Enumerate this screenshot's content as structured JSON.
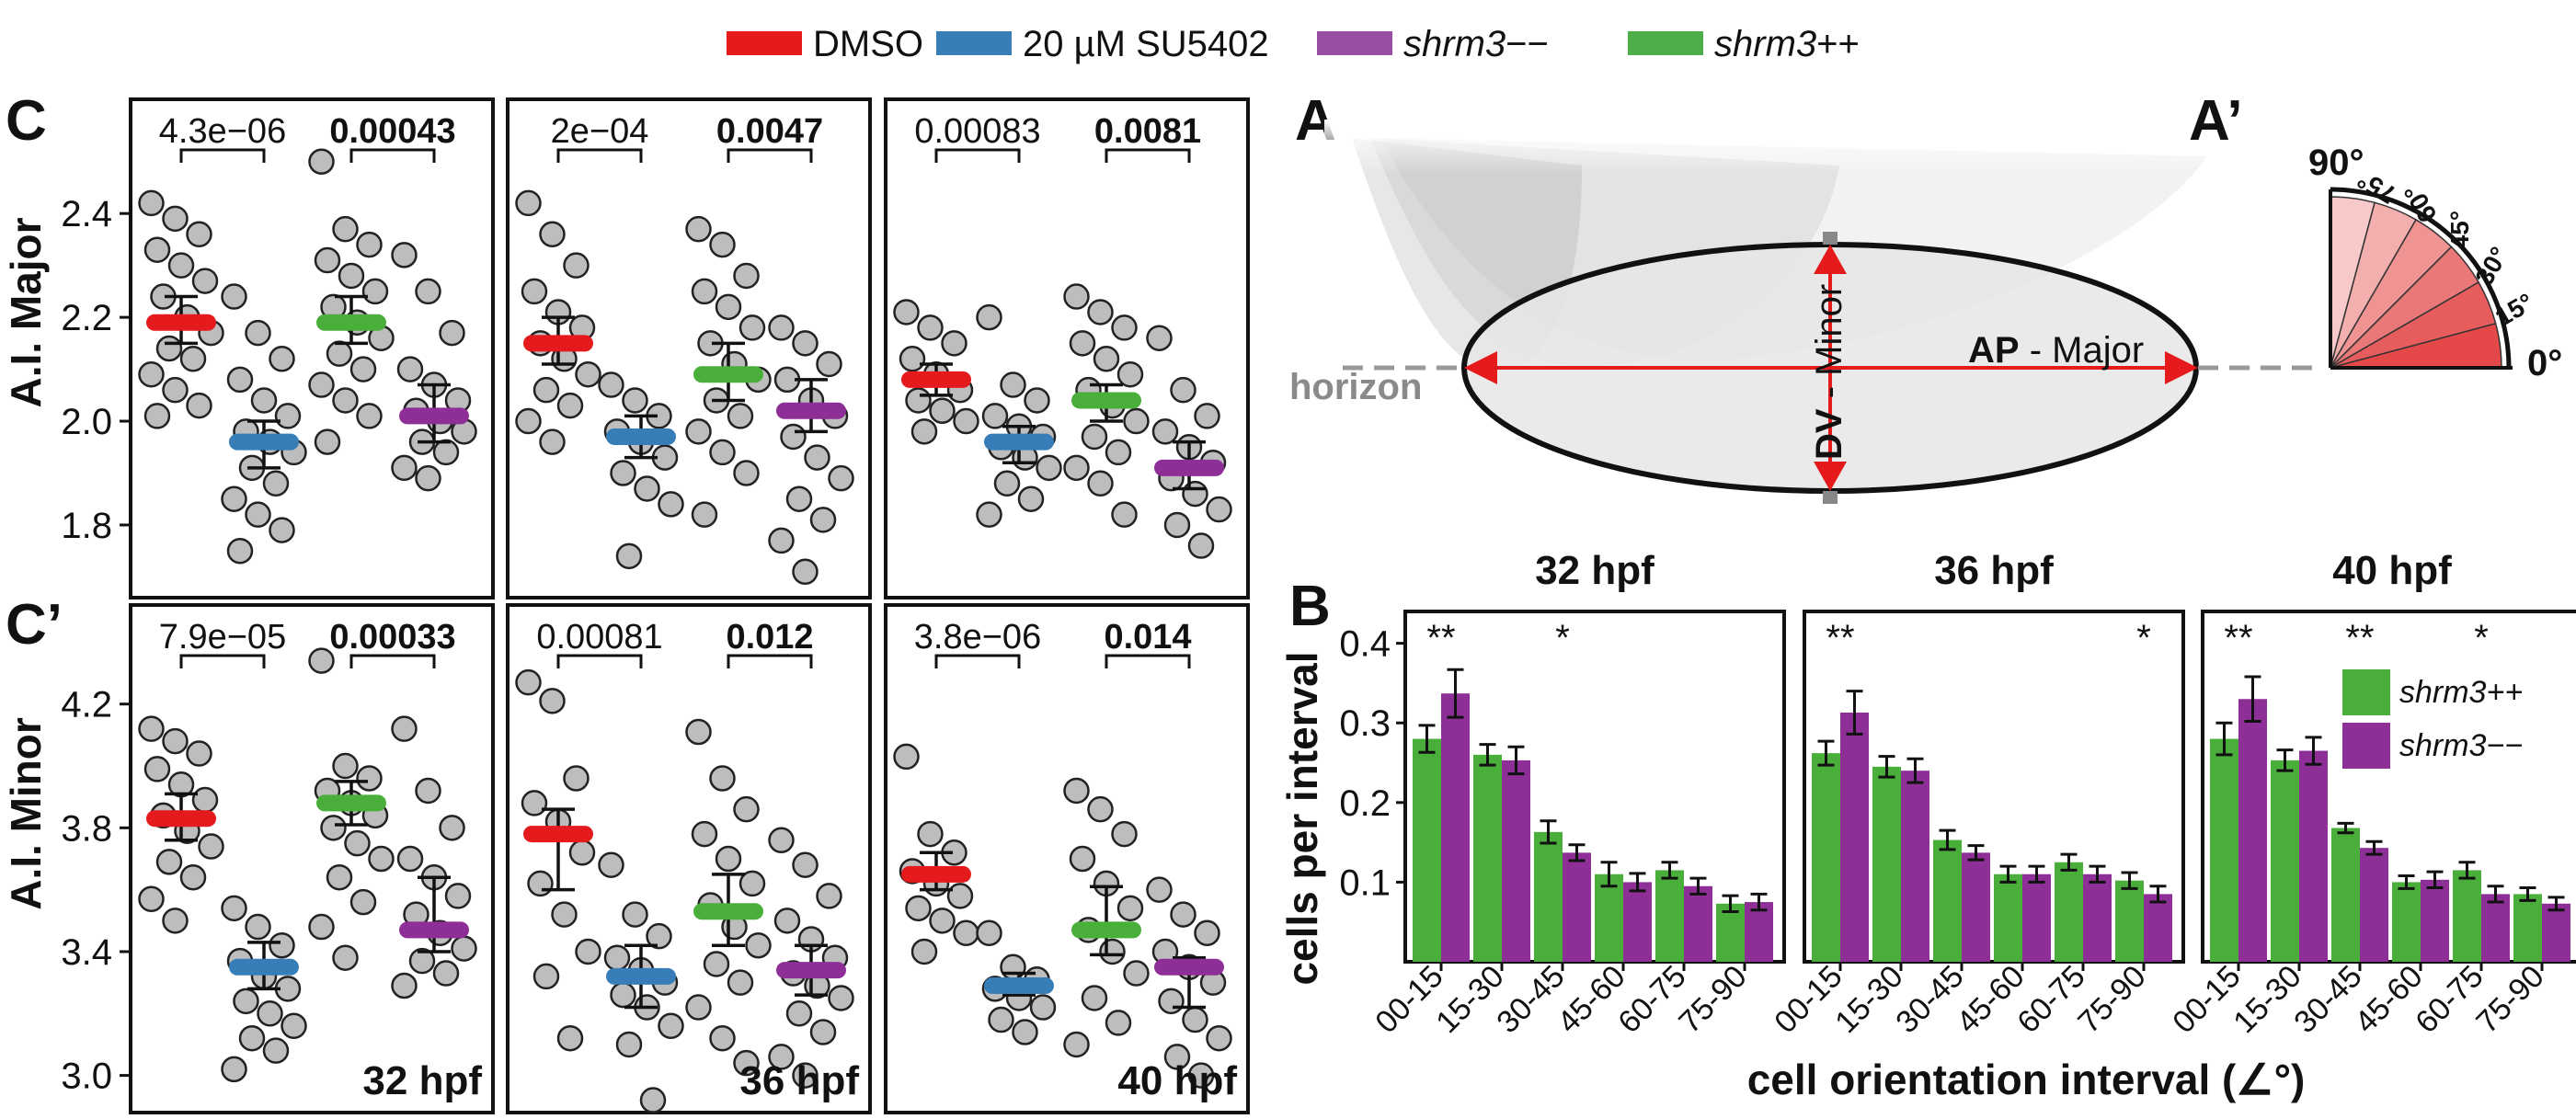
{
  "chart_data": [
    {
      "type": "scatter",
      "panel_label": "C",
      "ylabel": "A.I. Major",
      "yticks": [
        "1.8",
        "2.0",
        "2.2",
        "2.4"
      ],
      "ylim": [
        1.66,
        2.62
      ],
      "groups": [
        "DMSO",
        "20 µM SU5402",
        "shrm3−−",
        "shrm3++"
      ],
      "group_order": [
        "DMSO",
        "20 µM SU5402",
        "shrm3++",
        "shrm3−−"
      ],
      "panels": [
        {
          "stage": "32 hpf",
          "means": [
            2.19,
            1.96,
            2.19,
            2.01
          ],
          "ci_low": [
            2.15,
            1.91,
            2.15,
            1.96
          ],
          "ci_high": [
            2.24,
            2.0,
            2.24,
            2.07
          ],
          "p_left": "4.3e−06",
          "p_right": "0.00043",
          "points": [
            [
              2.42,
              2.39,
              2.36,
              2.33,
              2.3,
              2.27,
              2.24,
              2.2,
              2.17,
              2.14,
              2.12,
              2.09,
              2.06,
              2.03,
              2.01
            ],
            [
              2.24,
              2.17,
              2.12,
              2.08,
              2.04,
              2.01,
              1.98,
              1.96,
              1.94,
              1.91,
              1.88,
              1.85,
              1.82,
              1.79,
              1.75
            ],
            [
              2.5,
              2.37,
              2.34,
              2.31,
              2.28,
              2.25,
              2.22,
              2.19,
              2.16,
              2.13,
              2.1,
              2.07,
              2.04,
              2.01,
              1.96
            ],
            [
              2.32,
              2.25,
              2.17,
              2.1,
              2.07,
              2.04,
              2.02,
              2.0,
              1.98,
              1.96,
              1.94,
              1.91,
              1.89
            ]
          ]
        },
        {
          "stage": "36 hpf",
          "means": [
            2.15,
            1.97,
            2.09,
            2.02
          ],
          "ci_low": [
            2.11,
            1.93,
            2.04,
            1.98
          ],
          "ci_high": [
            2.2,
            2.01,
            2.15,
            2.08
          ],
          "p_left": "2e−04",
          "p_right": "0.0047",
          "points": [
            [
              2.42,
              2.36,
              2.3,
              2.25,
              2.21,
              2.18,
              2.15,
              2.12,
              2.09,
              2.06,
              2.03,
              2.0,
              1.96
            ],
            [
              2.07,
              2.04,
              2.01,
              1.98,
              1.96,
              1.93,
              1.9,
              1.87,
              1.84,
              1.74
            ],
            [
              2.37,
              2.34,
              2.28,
              2.25,
              2.22,
              2.18,
              2.15,
              2.11,
              2.08,
              2.04,
              2.01,
              1.98,
              1.94,
              1.9,
              1.82
            ],
            [
              2.18,
              2.15,
              2.11,
              2.08,
              2.04,
              2.01,
              1.97,
              1.93,
              1.89,
              1.85,
              1.81,
              1.77,
              1.71
            ]
          ]
        },
        {
          "stage": "40 hpf",
          "means": [
            2.08,
            1.96,
            2.04,
            1.91
          ],
          "ci_low": [
            2.05,
            1.92,
            2.0,
            1.87
          ],
          "ci_high": [
            2.11,
            1.99,
            2.07,
            1.96
          ],
          "p_left": "0.00083",
          "p_right": "0.0081",
          "points": [
            [
              2.21,
              2.18,
              2.15,
              2.12,
              2.09,
              2.06,
              2.04,
              2.02,
              2.0,
              1.98
            ],
            [
              2.2,
              2.07,
              2.04,
              2.01,
              1.99,
              1.97,
              1.95,
              1.93,
              1.91,
              1.88,
              1.85,
              1.82
            ],
            [
              2.24,
              2.21,
              2.18,
              2.15,
              2.12,
              2.09,
              2.06,
              2.03,
              2.0,
              1.97,
              1.94,
              1.91,
              1.88,
              1.82
            ],
            [
              2.16,
              2.06,
              2.01,
              1.98,
              1.95,
              1.92,
              1.89,
              1.86,
              1.83,
              1.8,
              1.76
            ]
          ]
        }
      ]
    },
    {
      "type": "scatter",
      "panel_label": "C’",
      "ylabel": "A.I. Minor",
      "yticks": [
        "3.0",
        "3.4",
        "3.8",
        "4.2"
      ],
      "ylim": [
        2.88,
        4.52
      ],
      "panels": [
        {
          "stage": "32 hpf",
          "means": [
            3.83,
            3.35,
            3.88,
            3.47
          ],
          "ci_low": [
            3.76,
            3.28,
            3.81,
            3.4
          ],
          "ci_high": [
            3.91,
            3.43,
            3.95,
            3.64
          ],
          "p_left": "7.9e−05",
          "p_right": "0.00033",
          "points": [
            [
              4.12,
              4.08,
              4.04,
              3.99,
              3.94,
              3.89,
              3.84,
              3.79,
              3.74,
              3.69,
              3.64,
              3.57,
              3.5
            ],
            [
              3.54,
              3.48,
              3.42,
              3.37,
              3.32,
              3.28,
              3.24,
              3.2,
              3.16,
              3.12,
              3.08,
              3.02
            ],
            [
              4.34,
              4.0,
              3.96,
              3.92,
              3.88,
              3.84,
              3.8,
              3.75,
              3.7,
              3.64,
              3.56,
              3.48,
              3.38
            ],
            [
              4.12,
              3.92,
              3.8,
              3.7,
              3.64,
              3.58,
              3.52,
              3.46,
              3.41,
              3.37,
              3.33,
              3.29
            ]
          ]
        },
        {
          "stage": "36 hpf",
          "means": [
            3.78,
            3.32,
            3.53,
            3.34
          ],
          "ci_low": [
            3.6,
            3.22,
            3.42,
            3.26
          ],
          "ci_high": [
            3.86,
            3.42,
            3.65,
            3.42
          ],
          "p_left": "0.00081",
          "p_right": "0.012",
          "points": [
            [
              4.27,
              4.21,
              3.96,
              3.88,
              3.82,
              3.72,
              3.62,
              3.52,
              3.4,
              3.32,
              3.12
            ],
            [
              3.68,
              3.52,
              3.45,
              3.38,
              3.34,
              3.3,
              3.26,
              3.22,
              3.16,
              3.1,
              2.92
            ],
            [
              4.11,
              3.96,
              3.86,
              3.78,
              3.7,
              3.62,
              3.55,
              3.48,
              3.42,
              3.36,
              3.3,
              3.22,
              3.12,
              3.04
            ],
            [
              3.76,
              3.68,
              3.58,
              3.5,
              3.44,
              3.38,
              3.33,
              3.29,
              3.25,
              3.2,
              3.14,
              3.06,
              3.0
            ]
          ]
        },
        {
          "stage": "40 hpf",
          "means": [
            3.65,
            3.29,
            3.47,
            3.35
          ],
          "ci_low": [
            3.6,
            3.26,
            3.39,
            3.22
          ],
          "ci_high": [
            3.72,
            3.33,
            3.61,
            3.38
          ],
          "p_left": "3.8e−06",
          "p_right": "0.014",
          "points": [
            [
              4.03,
              3.78,
              3.72,
              3.66,
              3.62,
              3.58,
              3.54,
              3.5,
              3.46,
              3.4
            ],
            [
              3.46,
              3.35,
              3.31,
              3.28,
              3.25,
              3.22,
              3.18,
              3.14
            ],
            [
              3.92,
              3.86,
              3.78,
              3.7,
              3.62,
              3.54,
              3.47,
              3.4,
              3.33,
              3.25,
              3.17,
              3.1
            ],
            [
              3.6,
              3.52,
              3.46,
              3.4,
              3.35,
              3.3,
              3.24,
              3.18,
              3.12,
              3.06,
              3.0
            ]
          ]
        }
      ]
    },
    {
      "type": "bar",
      "panel_label": "B",
      "ylabel": "cells per interval",
      "xlabel": "cell orientation interval (∠°)",
      "categories": [
        "00-15",
        "15-30",
        "30-45",
        "45-60",
        "60-75",
        "75-90"
      ],
      "yticks": [
        "0.1",
        "0.2",
        "0.3",
        "0.4"
      ],
      "ylim": [
        0.0,
        0.44
      ],
      "legend": [
        "shrm3++",
        "shrm3−−"
      ],
      "legend_position": "top-right",
      "panels": [
        {
          "stage": "32 hpf",
          "series": [
            {
              "name": "shrm3++",
              "values": [
                0.28,
                0.26,
                0.163,
                0.11,
                0.115,
                0.073
              ],
              "err": [
                0.017,
                0.013,
                0.014,
                0.015,
                0.01,
                0.01
              ]
            },
            {
              "name": "shrm3−−",
              "values": [
                0.337,
                0.253,
                0.137,
                0.1,
                0.095,
                0.075
              ],
              "err": [
                0.03,
                0.017,
                0.01,
                0.011,
                0.01,
                0.01
              ]
            }
          ],
          "stars": [
            "**",
            "",
            "*",
            "",
            "",
            ""
          ]
        },
        {
          "stage": "36 hpf",
          "series": [
            {
              "name": "shrm3++",
              "values": [
                0.262,
                0.245,
                0.153,
                0.11,
                0.125,
                0.102
              ],
              "err": [
                0.015,
                0.013,
                0.012,
                0.01,
                0.01,
                0.01
              ]
            },
            {
              "name": "shrm3−−",
              "values": [
                0.313,
                0.24,
                0.137,
                0.11,
                0.11,
                0.085
              ],
              "err": [
                0.027,
                0.015,
                0.009,
                0.01,
                0.01,
                0.01
              ]
            }
          ],
          "stars": [
            "**",
            "",
            "",
            "",
            "",
            "*"
          ]
        },
        {
          "stage": "40 hpf",
          "series": [
            {
              "name": "shrm3++",
              "values": [
                0.28,
                0.253,
                0.168,
                0.1,
                0.115,
                0.085
              ],
              "err": [
                0.02,
                0.013,
                0.006,
                0.008,
                0.01,
                0.008
              ]
            },
            {
              "name": "shrm3−−",
              "values": [
                0.33,
                0.265,
                0.143,
                0.103,
                0.085,
                0.073
              ],
              "err": [
                0.028,
                0.017,
                0.008,
                0.01,
                0.01,
                0.008
              ]
            }
          ],
          "stars": [
            "**",
            "",
            "**",
            "",
            "*",
            ""
          ]
        }
      ]
    }
  ],
  "legend": {
    "items": [
      {
        "label": "DMSO",
        "color": "#e41a1c",
        "italic": false,
        "suffix": ""
      },
      {
        "label": "20 µM SU5402",
        "color": "#377eb8",
        "italic": false,
        "suffix": ""
      },
      {
        "label": "shrm3",
        "color": "#984ea3",
        "italic": true,
        "suffix": "−−"
      },
      {
        "label": "shrm3",
        "color": "#4daf4a",
        "italic": true,
        "suffix": "++"
      }
    ]
  },
  "colors": {
    "dmso": "#e41a1c",
    "su5402": "#377eb8",
    "shrm3_mut": "#8e2f97",
    "shrm3_wt": "#4aae3b",
    "point_fill": "#bdbdbd"
  },
  "schematic": {
    "panel_a": "A",
    "panel_a_prime": "A’",
    "horizon": "horizon",
    "ap_bold": "AP",
    "ap_rest": " - Major",
    "dv_bold": "DV",
    "dv_rest": " - Minor",
    "angle_90": "90°",
    "angle_0": "0°",
    "angle_ticks": [
      "75°",
      "60°",
      "45°",
      "30°",
      "15°"
    ]
  }
}
